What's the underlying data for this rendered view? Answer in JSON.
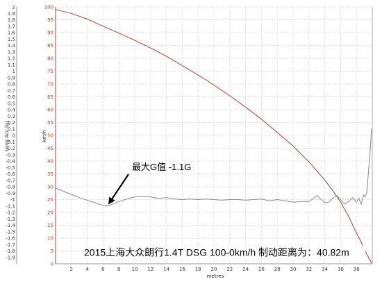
{
  "chart_data": {
    "type": "line",
    "xlabel": "metres",
    "ylabel_left": "Long Acc (g)",
    "ylabel_right": "km/h",
    "xlim": [
      0,
      40
    ],
    "ylim_left": [
      -2,
      2
    ],
    "ylim_right": [
      0,
      100
    ],
    "x_ticks": [
      "2",
      "4",
      "6",
      "8",
      "10",
      "12",
      "14",
      "16",
      "18",
      "20",
      "22",
      "24",
      "26",
      "28",
      "30",
      "32",
      "34",
      "36",
      "38"
    ],
    "left_ticks": [
      "2",
      "1.9",
      "1.8",
      "1.7",
      "1.6",
      "1.5",
      "1.4",
      "1.3",
      "1.2",
      "1.1",
      "1",
      "0.9",
      "0.8",
      "0.7",
      "0.6",
      "0.5",
      "0.4",
      "0.3",
      "0.2",
      "0.1",
      "0",
      "-0.1",
      "-0.2",
      "-0.3",
      "-0.4",
      "-0.5",
      "-0.6",
      "-0.7",
      "-0.8",
      "-0.9",
      "-1",
      "-1.1",
      "-1.2",
      "-1.3",
      "-1.4",
      "-1.5",
      "-1.6",
      "-1.7",
      "-1.8",
      "-1.9"
    ],
    "right_ticks": [
      "100",
      "95",
      "90",
      "85",
      "80",
      "75",
      "70",
      "65",
      "60",
      "55",
      "50",
      "45",
      "40",
      "35",
      "30",
      "25",
      "20",
      "15",
      "10",
      "5",
      "0"
    ],
    "grid": true,
    "series": [
      {
        "axis": "right",
        "color": "#c0392b",
        "x": [
          0,
          2,
          4,
          6,
          8,
          10,
          12,
          14,
          16,
          18,
          20,
          22,
          24,
          26,
          28,
          30,
          32,
          34,
          35,
          36,
          37,
          38,
          38.6,
          39,
          39.3,
          39.6,
          39.8,
          40
        ],
        "y": [
          99,
          97.5,
          95.3,
          92.5,
          89.8,
          87,
          84,
          80.8,
          77.2,
          73.5,
          69.6,
          65.4,
          61,
          56.3,
          51.2,
          45.8,
          39.7,
          32.6,
          28.5,
          24,
          18.5,
          12,
          8.5,
          5.5,
          3.8,
          2,
          1,
          0
        ]
      },
      {
        "axis": "left",
        "color": "#888888",
        "x": [
          0,
          1,
          2,
          3,
          4,
          5,
          6,
          6.5,
          7,
          8,
          9,
          10,
          11,
          12,
          13,
          14,
          15,
          16,
          17,
          18,
          19,
          20,
          21,
          22,
          23,
          24,
          25,
          26,
          27,
          28,
          29,
          30,
          31,
          32,
          32.5,
          33,
          33.5,
          34,
          34.5,
          35,
          35.5,
          36,
          36.5,
          37,
          37.5,
          38,
          38.3,
          38.6,
          38.9,
          39.1,
          39.3,
          39.5,
          39.7,
          39.9
        ],
        "y": [
          -0.82,
          -0.87,
          -0.92,
          -0.97,
          -1.01,
          -1.05,
          -1.09,
          -1.1,
          -1.08,
          -1.03,
          -0.99,
          -0.96,
          -0.95,
          -0.96,
          -0.98,
          -0.97,
          -0.99,
          -1.0,
          -0.99,
          -1.0,
          -0.99,
          -1.0,
          -1.01,
          -1.0,
          -1.0,
          -1.01,
          -1.0,
          -0.99,
          -1.02,
          -1.0,
          -1.02,
          -1.04,
          -1.03,
          -1.03,
          -0.99,
          -0.94,
          -0.99,
          -1.05,
          -1.04,
          -0.98,
          -0.94,
          -1.0,
          -1.07,
          -1.03,
          -0.97,
          -1.04,
          -0.98,
          -1.07,
          -0.93,
          -0.96,
          -0.9,
          -0.6,
          -0.3,
          0.1
        ]
      }
    ],
    "annotations": [
      {
        "text": "最大G值 -1.1G",
        "x": 6.5,
        "y": -1.1,
        "axis": "left"
      }
    ],
    "caption": "2015上海大众朗行1.4T DSG 100-0km/h 制动距离为：40.82m"
  }
}
